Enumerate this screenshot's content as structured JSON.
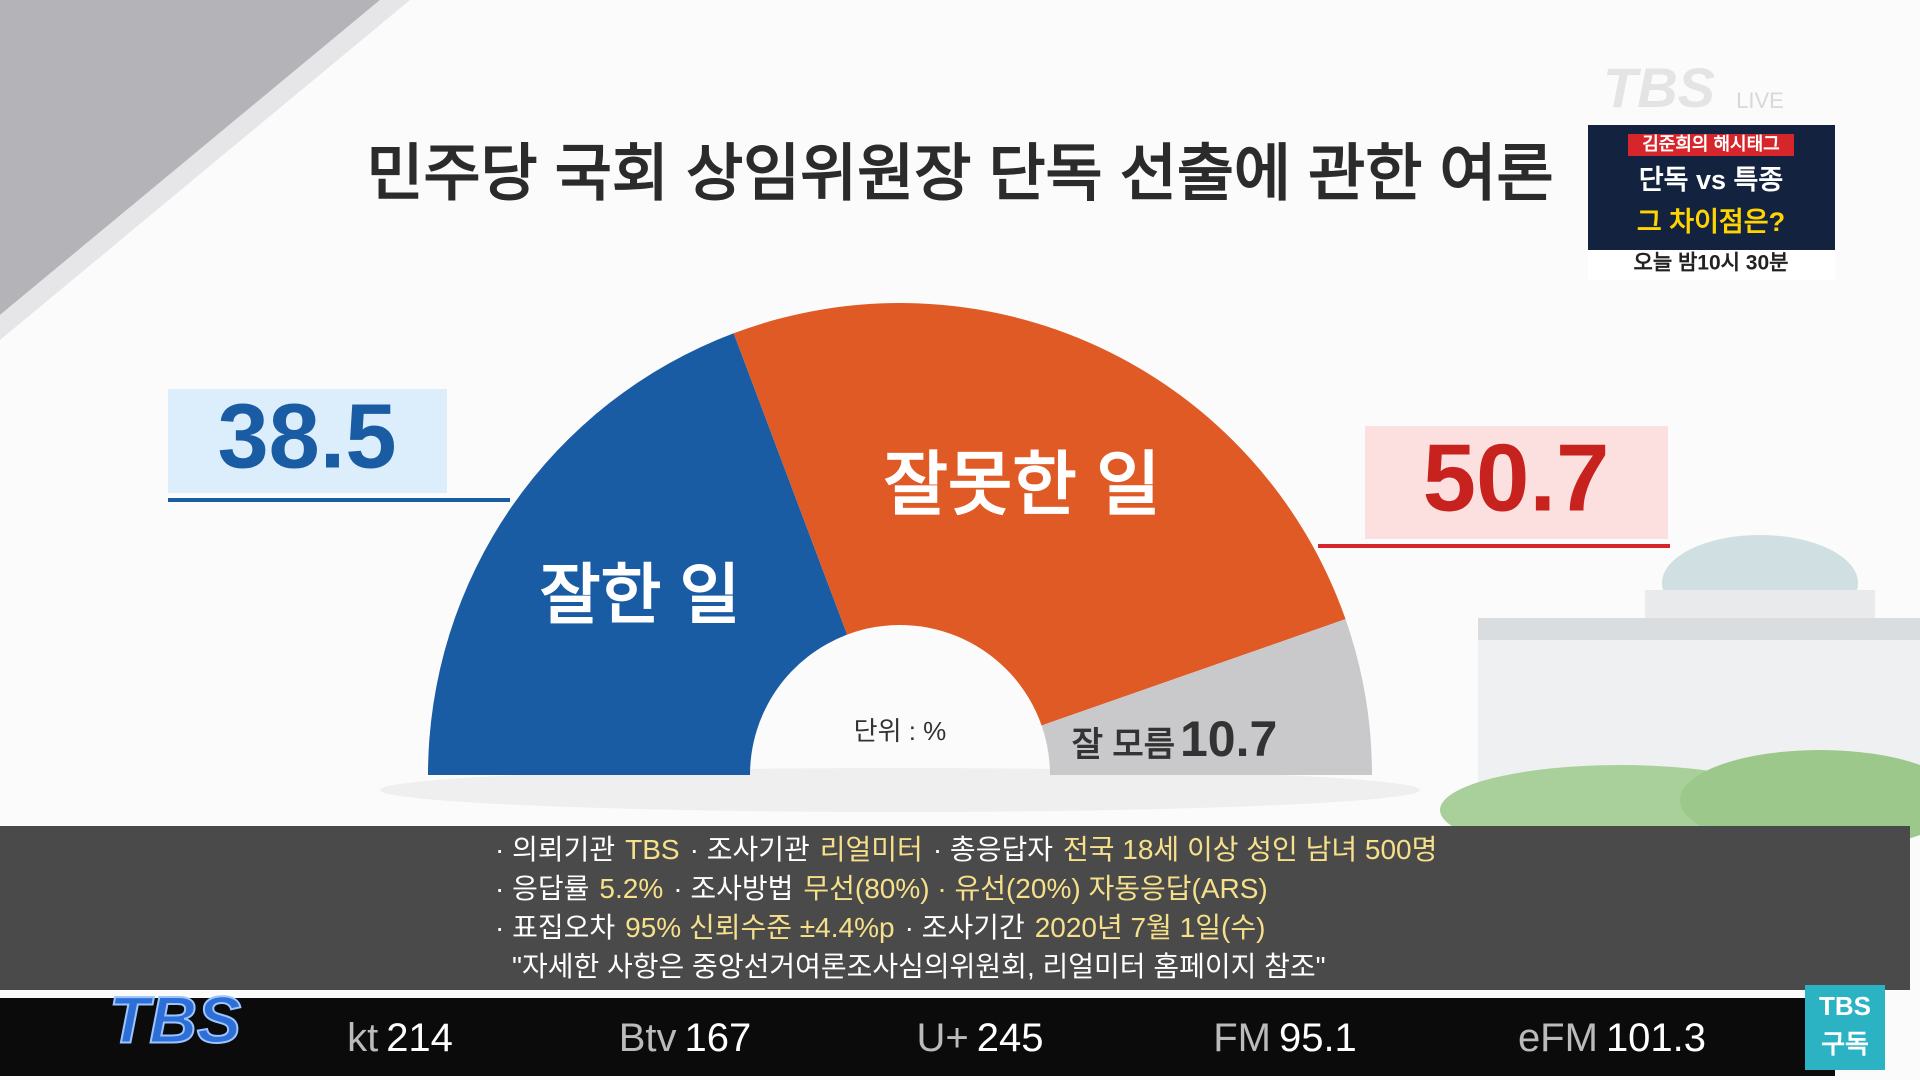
{
  "chart_data": {
    "type": "pie",
    "title": "민주당 국회 상임위원장 단독 선출에 관한 여론",
    "categories": [
      "잘한 일",
      "잘못한 일",
      "잘 모름"
    ],
    "values": [
      38.5,
      50.7,
      10.7
    ],
    "colors": [
      "#1a5ca3",
      "#e05a26",
      "#c9c9cb"
    ],
    "unit_note": "단위 : %"
  },
  "survey": {
    "lines": [
      [
        "· 의뢰기관",
        "TBS",
        "· 조사기관",
        "리얼미터",
        "· 총응답자",
        "전국 18세 이상 성인 남녀 500명"
      ],
      [
        "· 응답률",
        "5.2%",
        "· 조사방법",
        "무선(80%) · 유선(20%) 자동응답(ARS)"
      ],
      [
        "· 표집오차",
        "95% 신뢰수준 ±4.4%p",
        "· 조사기간",
        "2020년 7월 1일(수)"
      ],
      [
        "\"자세한 사항은 중앙선거여론조사심의위원회, 리얼미터 홈페이지 참조\""
      ]
    ]
  },
  "promo": {
    "show": "김준희의 해시태그",
    "line1": "단독 vs 특종",
    "line2": "그 차이점은?",
    "time": "오늘 밤10시 30분"
  },
  "logo": {
    "name": "TBS",
    "tag": "LIVE"
  },
  "ticker": {
    "logo": "TBS",
    "channels": [
      {
        "name": "kt",
        "number": "214"
      },
      {
        "name": "Btv",
        "number": "167"
      },
      {
        "name": "U+",
        "number": "245"
      },
      {
        "name": "FM",
        "number": "95.1"
      },
      {
        "name": "eFM",
        "number": "101.3"
      }
    ],
    "subscribe": [
      "TBS",
      "구독"
    ]
  }
}
